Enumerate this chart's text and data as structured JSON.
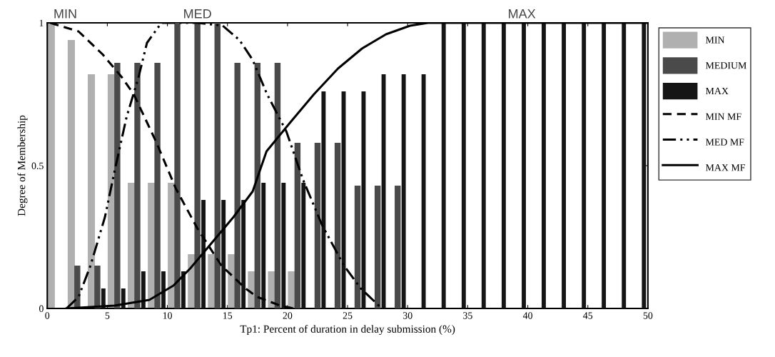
{
  "chart_data": {
    "type": "bar",
    "xlabel": "Tp1: Percent of duration in delay submission (%)",
    "ylabel": "Degree of Membership",
    "x": [
      0.83,
      2.5,
      4.17,
      5.83,
      7.5,
      9.17,
      10.83,
      12.5,
      14.17,
      15.83,
      17.5,
      19.17,
      20.83,
      22.5,
      24.17,
      25.83,
      27.5,
      29.17,
      30.83,
      32.5,
      34.17,
      35.83,
      37.5,
      39.17,
      40.83,
      42.5,
      44.17,
      45.83,
      47.5,
      49.17
    ],
    "series": [
      {
        "name": "MIN",
        "color": "#b0b0b0",
        "values": [
          1.0,
          0.94,
          0.82,
          0.82,
          0.44,
          0.44,
          0.44,
          0.19,
          0.19,
          0.19,
          0.13,
          0.13,
          0.13,
          null,
          null,
          null,
          null,
          null,
          null,
          null,
          null,
          null,
          null,
          null,
          null,
          null,
          null,
          null,
          null,
          null
        ]
      },
      {
        "name": "MEDIUM",
        "color": "#4a4a4a",
        "values": [
          null,
          0.15,
          0.15,
          0.86,
          0.86,
          0.86,
          1.0,
          1.0,
          1.0,
          0.86,
          0.86,
          0.86,
          0.58,
          0.58,
          0.58,
          0.43,
          0.43,
          0.43,
          null,
          null,
          null,
          null,
          null,
          null,
          null,
          null,
          null,
          null,
          null,
          null
        ]
      },
      {
        "name": "MAX",
        "color": "#151515",
        "values": [
          null,
          null,
          0.07,
          0.07,
          0.13,
          0.13,
          0.13,
          0.38,
          0.38,
          0.38,
          0.44,
          0.44,
          0.44,
          0.76,
          0.76,
          0.76,
          0.82,
          0.82,
          0.82,
          1.0,
          1.0,
          1.0,
          1.0,
          1.0,
          1.0,
          1.0,
          1.0,
          1.0,
          1.0,
          1.0
        ]
      },
      {
        "name": "MIN MF",
        "type": "line",
        "line_style": "dashed",
        "color": "#000000",
        "x": [
          0.24,
          2.6,
          4.6,
          6.2,
          7.2,
          9.1,
          10.7,
          12.5,
          14.5,
          16.5,
          17.5,
          19.4,
          20.5
        ],
        "values": [
          1.0,
          0.97,
          0.89,
          0.81,
          0.75,
          0.58,
          0.42,
          0.28,
          0.15,
          0.07,
          0.04,
          0.01,
          0.0
        ]
      },
      {
        "name": "MED MF",
        "type": "line",
        "line_style": "dashdot",
        "color": "#000000",
        "x": [
          1.6,
          2.6,
          3.6,
          4.8,
          5.6,
          6.6,
          7.6,
          8.3,
          9.5,
          12.5,
          14.6,
          16.0,
          17.1,
          18.3,
          19.9,
          21.3,
          22.9,
          24.7,
          26.1,
          27.6,
          28.0
        ],
        "values": [
          0.0,
          0.04,
          0.15,
          0.32,
          0.48,
          0.67,
          0.81,
          0.93,
          1.0,
          1.0,
          0.99,
          0.94,
          0.87,
          0.75,
          0.62,
          0.45,
          0.29,
          0.15,
          0.07,
          0.01,
          0.0
        ]
      },
      {
        "name": "MAX MF",
        "type": "line",
        "line_style": "solid",
        "color": "#000000",
        "x": [
          1.6,
          5.6,
          8.5,
          10.5,
          11.9,
          13.5,
          15.5,
          17.1,
          18.25,
          20.2,
          22.2,
          24.2,
          26.2,
          28.2,
          30.2,
          31.7,
          50.0
        ],
        "values": [
          0.0,
          0.01,
          0.03,
          0.08,
          0.14,
          0.22,
          0.32,
          0.41,
          0.55,
          0.65,
          0.75,
          0.84,
          0.91,
          0.96,
          0.99,
          1.0,
          1.0
        ]
      }
    ],
    "xlim": [
      0,
      50
    ],
    "xticks": [
      0,
      5,
      10,
      15,
      20,
      25,
      30,
      35,
      40,
      45,
      50
    ],
    "ylim": [
      0,
      1
    ],
    "yticks": [
      0,
      0.5,
      1
    ],
    "annotations": [
      {
        "text": "MIN",
        "x": 1.5,
        "y": 1
      },
      {
        "text": "MED",
        "x": 12.5,
        "y": 1
      },
      {
        "text": "MAX",
        "x": 39.5,
        "y": 1
      }
    ],
    "legend": "top right",
    "marker": "none",
    "grid": false
  }
}
